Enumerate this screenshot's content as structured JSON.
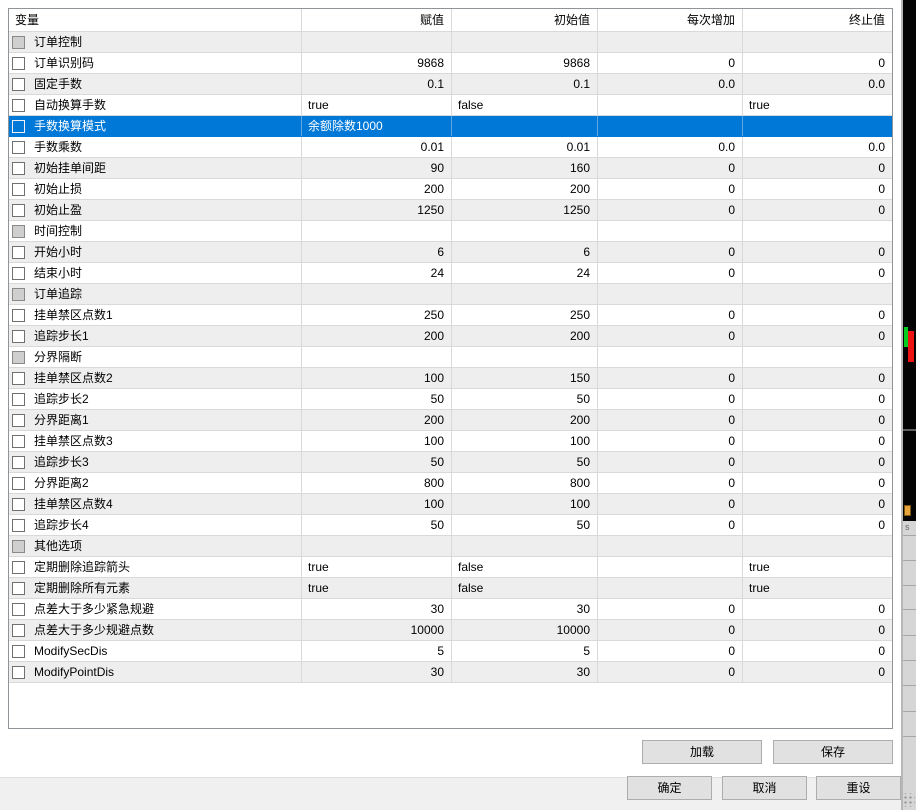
{
  "table": {
    "headers": [
      "变量",
      "赋值",
      "初始值",
      "每次增加",
      "终止值"
    ],
    "rows": [
      {
        "name": "订单控制",
        "type": "group",
        "values": [
          "",
          "",
          "",
          ""
        ]
      },
      {
        "name": "订单识别码",
        "type": "num",
        "values": [
          "9868",
          "9868",
          "0",
          "0"
        ]
      },
      {
        "name": "固定手数",
        "type": "num",
        "values": [
          "0.1",
          "0.1",
          "0.0",
          "0.0"
        ]
      },
      {
        "name": "自动换算手数",
        "type": "text",
        "values": [
          "true",
          "false",
          "",
          "true"
        ]
      },
      {
        "name": "手数换算模式",
        "type": "text",
        "selected": true,
        "values": [
          "余额除数1000",
          "",
          "",
          ""
        ]
      },
      {
        "name": "手数乘数",
        "type": "num",
        "values": [
          "0.01",
          "0.01",
          "0.0",
          "0.0"
        ]
      },
      {
        "name": "初始挂单间距",
        "type": "num",
        "values": [
          "90",
          "160",
          "0",
          "0"
        ]
      },
      {
        "name": "初始止损",
        "type": "num",
        "values": [
          "200",
          "200",
          "0",
          "0"
        ]
      },
      {
        "name": "初始止盈",
        "type": "num",
        "values": [
          "1250",
          "1250",
          "0",
          "0"
        ]
      },
      {
        "name": "时间控制",
        "type": "group",
        "values": [
          "",
          "",
          "",
          ""
        ]
      },
      {
        "name": "开始小时",
        "type": "num",
        "values": [
          "6",
          "6",
          "0",
          "0"
        ]
      },
      {
        "name": "结束小时",
        "type": "num",
        "values": [
          "24",
          "24",
          "0",
          "0"
        ]
      },
      {
        "name": "订单追踪",
        "type": "group",
        "values": [
          "",
          "",
          "",
          ""
        ]
      },
      {
        "name": "挂单禁区点数1",
        "type": "num",
        "values": [
          "250",
          "250",
          "0",
          "0"
        ]
      },
      {
        "name": "追踪步长1",
        "type": "num",
        "values": [
          "200",
          "200",
          "0",
          "0"
        ]
      },
      {
        "name": "分界隔断",
        "type": "group",
        "values": [
          "",
          "",
          "",
          ""
        ]
      },
      {
        "name": "挂单禁区点数2",
        "type": "num",
        "values": [
          "100",
          "150",
          "0",
          "0"
        ]
      },
      {
        "name": "追踪步长2",
        "type": "num",
        "values": [
          "50",
          "50",
          "0",
          "0"
        ]
      },
      {
        "name": "分界距离1",
        "type": "num",
        "values": [
          "200",
          "200",
          "0",
          "0"
        ]
      },
      {
        "name": "挂单禁区点数3",
        "type": "num",
        "values": [
          "100",
          "100",
          "0",
          "0"
        ]
      },
      {
        "name": "追踪步长3",
        "type": "num",
        "values": [
          "50",
          "50",
          "0",
          "0"
        ]
      },
      {
        "name": "分界距离2",
        "type": "num",
        "values": [
          "800",
          "800",
          "0",
          "0"
        ]
      },
      {
        "name": "挂单禁区点数4",
        "type": "num",
        "values": [
          "100",
          "100",
          "0",
          "0"
        ]
      },
      {
        "name": "追踪步长4",
        "type": "num",
        "values": [
          "50",
          "50",
          "0",
          "0"
        ]
      },
      {
        "name": "其他选项",
        "type": "group",
        "values": [
          "",
          "",
          "",
          ""
        ]
      },
      {
        "name": "定期删除追踪箭头",
        "type": "text",
        "values": [
          "true",
          "false",
          "",
          "true"
        ]
      },
      {
        "name": "定期删除所有元素",
        "type": "text",
        "values": [
          "true",
          "false",
          "",
          "true"
        ]
      },
      {
        "name": "点差大于多少紧急规避",
        "type": "num",
        "values": [
          "30",
          "30",
          "0",
          "0"
        ]
      },
      {
        "name": "点差大于多少规避点数",
        "type": "num",
        "values": [
          "10000",
          "10000",
          "0",
          "0"
        ]
      },
      {
        "name": "ModifySecDis",
        "type": "num",
        "values": [
          "5",
          "5",
          "0",
          "0"
        ]
      },
      {
        "name": "ModifyPointDis",
        "type": "num",
        "values": [
          "30",
          "30",
          "0",
          "0"
        ]
      }
    ]
  },
  "buttons": {
    "load": "加载",
    "save": "保存",
    "ok": "确定",
    "cancel": "取消",
    "reset": "重设"
  },
  "side_strip": {
    "panel_char": "s"
  },
  "colors": {
    "selection": "#0078d7",
    "stripe": "#eeeeee",
    "candle_up": "#00cd1f",
    "candle_down": "#ee1111",
    "orange_marker": "#e8a33d"
  }
}
